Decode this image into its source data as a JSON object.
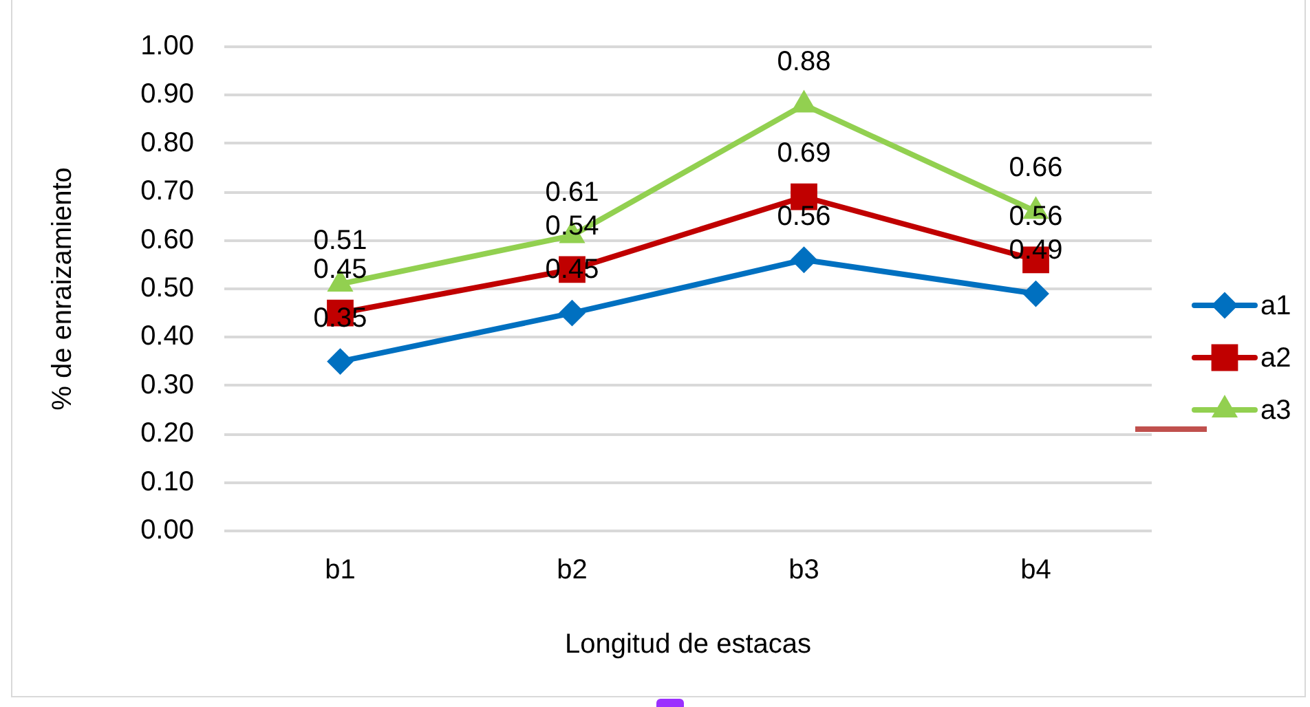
{
  "chart_data": {
    "type": "line",
    "xlabel": "Longitud de estacas",
    "ylabel": "% de enraizamiento",
    "categories": [
      "b1",
      "b2",
      "b3",
      "b4"
    ],
    "series": [
      {
        "name": "a1",
        "color": "#0070c0",
        "marker": "diamond",
        "values": [
          0.35,
          0.45,
          0.56,
          0.49
        ]
      },
      {
        "name": "a2",
        "color": "#c00000",
        "marker": "square",
        "values": [
          0.45,
          0.54,
          0.69,
          0.56
        ]
      },
      {
        "name": "a3",
        "color": "#92d050",
        "marker": "triangle",
        "values": [
          0.51,
          0.61,
          0.88,
          0.66
        ]
      }
    ],
    "ylim": [
      0,
      1
    ],
    "yticks": [
      {
        "value": 0,
        "label": "0.00"
      },
      {
        "value": 0.1,
        "label": "0.10"
      },
      {
        "value": 0.2,
        "label": "0.20"
      },
      {
        "value": 0.3,
        "label": "0.30"
      },
      {
        "value": 0.4,
        "label": "0.40"
      },
      {
        "value": 0.5,
        "label": "0.50"
      },
      {
        "value": 0.6,
        "label": "0.60"
      },
      {
        "value": 0.7,
        "label": "0.70"
      },
      {
        "value": 0.8,
        "label": "0.80"
      },
      {
        "value": 0.9,
        "label": "0.90"
      },
      {
        "value": 1,
        "label": "1.00"
      }
    ],
    "grid": "y",
    "legend": "right",
    "data_labels": true,
    "line_style": "solid"
  }
}
